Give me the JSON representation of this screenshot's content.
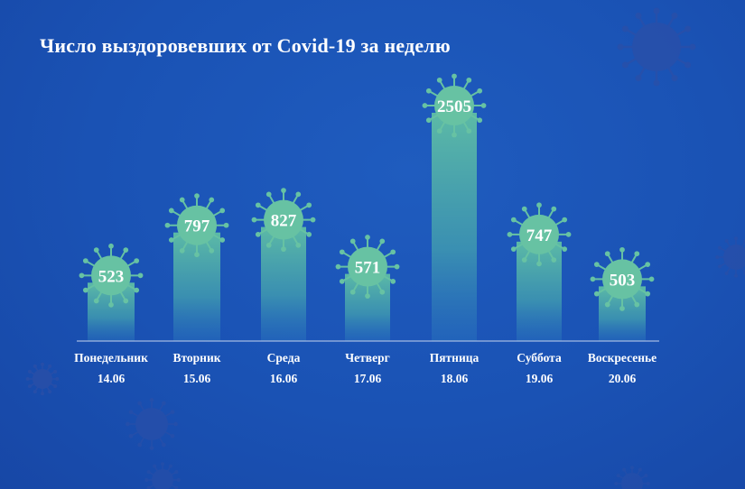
{
  "colors": {
    "background": "#1a52b4",
    "virus": "#67c2a3",
    "bar_top": "#52b3a8",
    "decor_virus": "#2a4fa8"
  },
  "chart_data": {
    "type": "bar",
    "title": "Число выздоровевших от Covid-19 за неделю",
    "xlabel": "",
    "ylabel": "",
    "categories": [
      {
        "day": "Понедельник",
        "date": "14.06"
      },
      {
        "day": "Вторник",
        "date": "15.06"
      },
      {
        "day": "Среда",
        "date": "16.06"
      },
      {
        "day": "Четверг",
        "date": "17.06"
      },
      {
        "day": "Пятница",
        "date": "18.06"
      },
      {
        "day": "Суббота",
        "date": "19.06"
      },
      {
        "day": "Воскресенье",
        "date": "20.06"
      }
    ],
    "values": [
      523,
      797,
      827,
      571,
      2505,
      747,
      503
    ],
    "grid": false,
    "legend": "none"
  }
}
